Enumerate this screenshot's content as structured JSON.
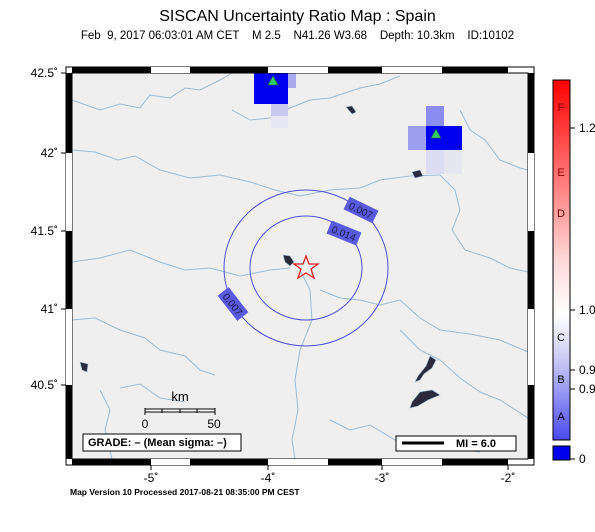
{
  "title": "SISCAN Uncertainty Ratio Map : Spain",
  "subtitle": "Feb  9, 2017 06:03:01 AM CET    M 2.5    N41.26 W3.68    Depth: 10.3km    ID:10102",
  "footer": "Map Version 10 Processed 2017-08-21 08:35:00 PM CEST",
  "axes": {
    "lat_labels": [
      "42.5˚",
      "42˚",
      "41.5˚",
      "41˚",
      "40.5˚"
    ],
    "lon_labels": [
      "-5˚",
      "-4˚",
      "-3˚",
      "-2˚"
    ]
  },
  "map": {
    "background": "#efefef",
    "water_color": "#9bbbd6",
    "contour_color": "#5050d8",
    "contour_labels": [
      "0.007",
      "0.014",
      "0.007"
    ],
    "epicenter": {
      "lat": 41.26,
      "lon": -3.68,
      "marker": "star-icon"
    },
    "stations": [
      {
        "name": "station-north",
        "marker": "triangle-icon"
      },
      {
        "name": "station-northeast",
        "marker": "triangle-icon"
      }
    ]
  },
  "scalebar": {
    "unit": "km",
    "ticks": [
      "0",
      "50"
    ]
  },
  "grade_box": "GRADE: – (Mean sigma: –)",
  "mi_legend": "MI = 6.0",
  "colorbar": {
    "letters": [
      "F",
      "E",
      "D",
      "C",
      "B",
      "A"
    ],
    "values": [
      "1.2",
      "1.0",
      "0.9",
      "0.9",
      "0"
    ],
    "colors": {
      "top": "#ff0000",
      "middle": "#ffffff",
      "bottom": "#0000ff"
    }
  }
}
